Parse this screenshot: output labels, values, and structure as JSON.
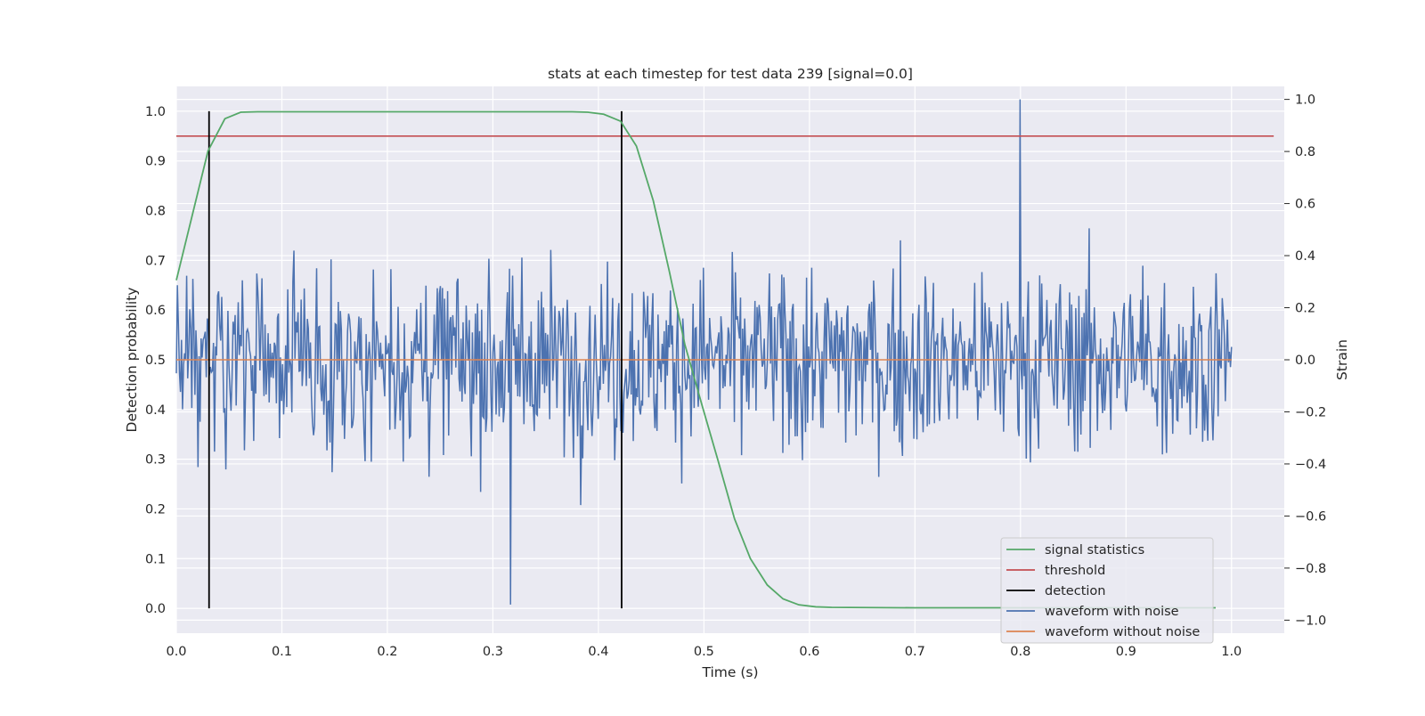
{
  "chart_data": {
    "type": "line",
    "title": "stats at each timestep for test data 239 [signal=0.0]",
    "xlabel": "Time (s)",
    "ylabel_left": "Detection probability",
    "ylabel_right": "Strain",
    "xlim": [
      0.0,
      1.05
    ],
    "ylim_left": [
      -0.05,
      1.05
    ],
    "ylim_right": [
      -1.05,
      1.05
    ],
    "x_ticks": [
      "0.0",
      "0.1",
      "0.2",
      "0.3",
      "0.4",
      "0.5",
      "0.6",
      "0.7",
      "0.8",
      "0.9",
      "1.0"
    ],
    "y_ticks_left": [
      "0.0",
      "0.1",
      "0.2",
      "0.3",
      "0.4",
      "0.5",
      "0.6",
      "0.7",
      "0.8",
      "0.9",
      "1.0"
    ],
    "y_ticks_right": [
      "−1.0",
      "−0.8",
      "−0.6",
      "−0.4",
      "−0.2",
      "0.0",
      "0.2",
      "0.4",
      "0.6",
      "0.8",
      "1.0"
    ],
    "grid": true,
    "legend_position": "lower-right",
    "colors": {
      "background": "#eaeaf2",
      "grid": "#ffffff",
      "signal_statistics": "#55a868",
      "threshold": "#c44e52",
      "detection": "#000000",
      "waveform_with_noise": "#4c72b0",
      "waveform_without_noise": "#dd8452"
    },
    "series": [
      {
        "name": "signal statistics",
        "axis": "left",
        "x": [
          0.0,
          0.015,
          0.03,
          0.046,
          0.061,
          0.077,
          0.2,
          0.3,
          0.375,
          0.39,
          0.405,
          0.421,
          0.436,
          0.452,
          0.467,
          0.482,
          0.498,
          0.513,
          0.529,
          0.544,
          0.56,
          0.575,
          0.59,
          0.606,
          0.621,
          0.7,
          0.8,
          0.9,
          0.985
        ],
        "y": [
          0.66,
          0.79,
          0.92,
          0.985,
          0.998,
          0.999,
          0.999,
          0.999,
          0.999,
          0.998,
          0.994,
          0.98,
          0.93,
          0.82,
          0.68,
          0.53,
          0.41,
          0.3,
          0.18,
          0.1,
          0.047,
          0.019,
          0.007,
          0.003,
          0.002,
          0.001,
          0.001,
          0.001,
          0.001
        ]
      },
      {
        "name": "threshold",
        "axis": "left",
        "x": [
          0.0,
          1.04
        ],
        "y": [
          0.95,
          0.95
        ]
      },
      {
        "name": "detection",
        "axis": "left",
        "segments": [
          {
            "x": 0.031,
            "y0": 0.0,
            "y1": 1.0
          },
          {
            "x": 0.422,
            "y0": 0.0,
            "y1": 1.0
          }
        ]
      },
      {
        "name": "waveform with noise",
        "axis": "right",
        "x_start": 0.0,
        "x_end": 1.0,
        "points": 1024,
        "y_range": [
          -0.94,
          1.0
        ],
        "peak": {
          "x": 0.8,
          "y": 1.0
        },
        "min": {
          "x": 0.317,
          "y": -0.94
        }
      },
      {
        "name": "waveform without noise",
        "axis": "right",
        "x": [
          0.0,
          1.0
        ],
        "y": [
          0.0,
          0.0
        ]
      }
    ]
  }
}
